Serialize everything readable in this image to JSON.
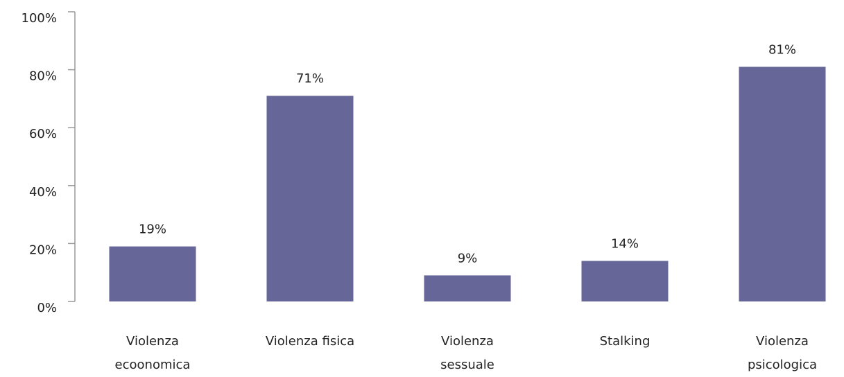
{
  "chart_data": {
    "type": "bar",
    "categories": [
      "Violenza\necoonomica",
      "Violenza fisica",
      "Violenza\nsessuale",
      "Stalking",
      "Violenza\npsicologica"
    ],
    "values": [
      19,
      71,
      9,
      14,
      81
    ],
    "value_labels": [
      "19%",
      "71%",
      "9%",
      "14%",
      "81%"
    ],
    "color": "#666699",
    "ylim": [
      0,
      100
    ],
    "yticks": [
      {
        "value": 0,
        "label": "0%"
      },
      {
        "value": 20,
        "label": "20%"
      },
      {
        "value": 40,
        "label": "40%"
      },
      {
        "value": 60,
        "label": "60%"
      },
      {
        "value": 80,
        "label": "80%"
      },
      {
        "value": 100,
        "label": "100%"
      }
    ],
    "grid": false
  }
}
